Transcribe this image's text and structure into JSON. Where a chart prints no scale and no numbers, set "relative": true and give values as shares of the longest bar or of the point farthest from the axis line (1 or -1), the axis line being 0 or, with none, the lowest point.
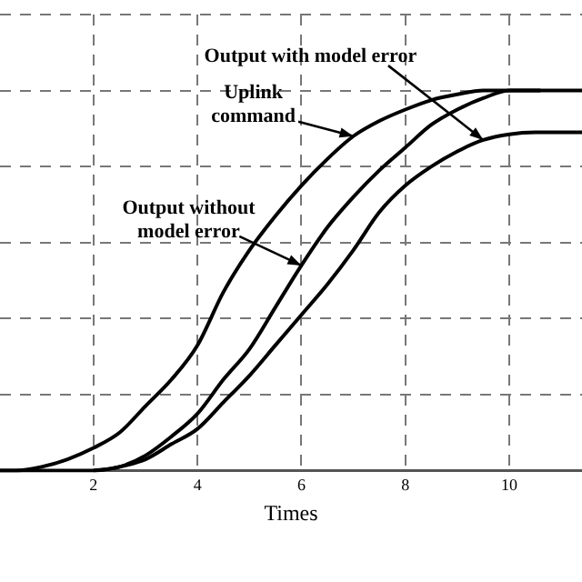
{
  "chart_data": {
    "type": "line",
    "relative": true,
    "xlabel": "Times",
    "xlim": [
      0.2,
      11.4
    ],
    "xticks": [
      2,
      4,
      6,
      8,
      10
    ],
    "grid": true,
    "legend": false,
    "line_style": "solid",
    "marker": "none",
    "series": [
      {
        "color": "#000000",
        "x": [
          0.2,
          0.5,
          1,
          1.5,
          2,
          2.5,
          3,
          3.5,
          4,
          4.5,
          5,
          5.5,
          6,
          6.5,
          7,
          7.5,
          8,
          8.5,
          9,
          9.5,
          11.4
        ],
        "values": [
          0,
          0,
          0.01,
          0.03,
          0.06,
          0.1,
          0.17,
          0.24,
          0.33,
          0.47,
          0.58,
          0.67,
          0.75,
          0.82,
          0.88,
          0.92,
          0.95,
          0.975,
          0.99,
          1,
          1
        ]
      },
      {
        "color": "#000000",
        "x": [
          2,
          2.5,
          3,
          3.5,
          4,
          4.5,
          5,
          5.5,
          6,
          6.5,
          7,
          7.5,
          8,
          8.5,
          9,
          9.5,
          10,
          10.6
        ],
        "values": [
          0,
          0.01,
          0.04,
          0.09,
          0.15,
          0.24,
          0.32,
          0.43,
          0.54,
          0.64,
          0.72,
          0.79,
          0.85,
          0.91,
          0.95,
          0.98,
          1,
          1
        ]
      },
      {
        "color": "#000000",
        "x": [
          0.2,
          2,
          2.5,
          3,
          3.5,
          4,
          4.5,
          5,
          5.5,
          6,
          6.5,
          7,
          7.5,
          8,
          8.5,
          9,
          9.5,
          10,
          10.5,
          11.4
        ],
        "values": [
          0,
          0,
          0.01,
          0.03,
          0.07,
          0.11,
          0.18,
          0.25,
          0.33,
          0.41,
          0.49,
          0.58,
          0.68,
          0.75,
          0.8,
          0.84,
          0.87,
          0.885,
          0.89,
          0.89
        ]
      }
    ],
    "annotations": [
      {
        "text": "Output with model error",
        "x": 9.5,
        "y": 0.87
      },
      {
        "text": "Uplink command",
        "x": 7,
        "y": 0.88
      },
      {
        "text": "Output without model error",
        "x": 6,
        "y": 0.54
      }
    ]
  }
}
